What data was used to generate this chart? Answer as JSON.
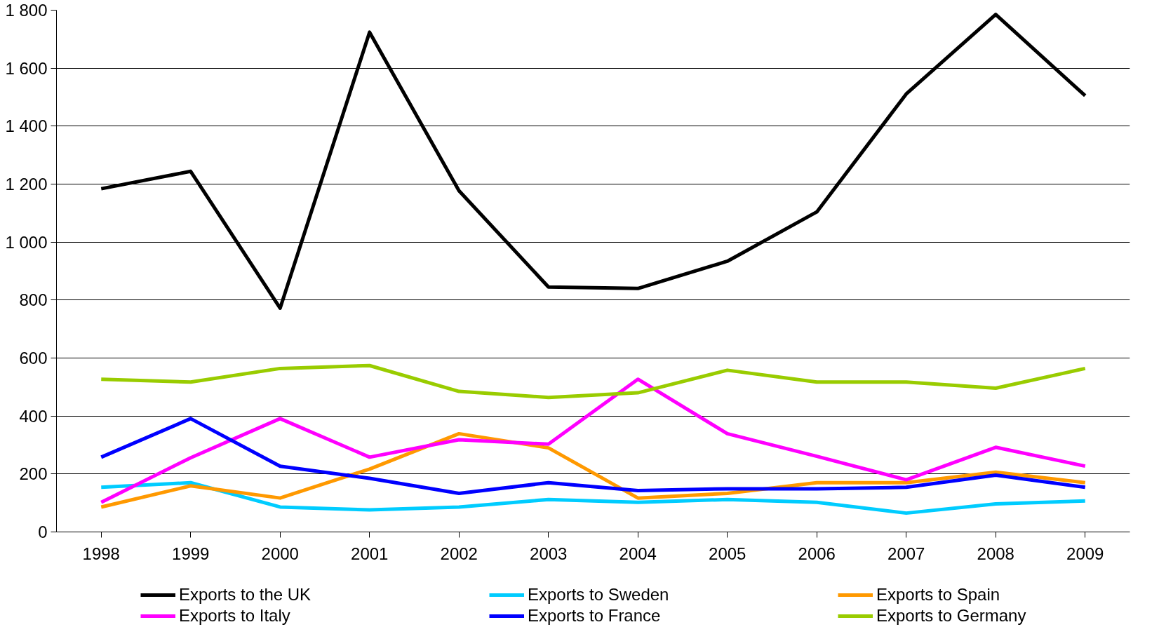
{
  "chart_data": {
    "type": "line",
    "categories": [
      "1998",
      "1999",
      "2000",
      "2001",
      "2002",
      "2003",
      "2004",
      "2005",
      "2006",
      "2007",
      "2008",
      "2009"
    ],
    "series": [
      {
        "name": "Exports to the UK",
        "color": "#000000",
        "values": [
          1184,
          1244,
          772,
          1724,
          1177,
          845,
          840,
          934,
          1104,
          1511,
          1785,
          1505
        ]
      },
      {
        "name": "Exports to Sweden",
        "color": "#00ccff",
        "values": [
          154,
          170,
          86,
          76,
          86,
          112,
          102,
          112,
          102,
          65,
          97,
          107
        ]
      },
      {
        "name": "Exports to Spain",
        "color": "#ff9900",
        "values": [
          86,
          159,
          117,
          217,
          339,
          290,
          117,
          133,
          170,
          170,
          206,
          170
        ]
      },
      {
        "name": "Exports to Italy",
        "color": "#ff00ff",
        "values": [
          102,
          256,
          391,
          258,
          318,
          303,
          527,
          339,
          261,
          180,
          292,
          227
        ]
      },
      {
        "name": "Exports to France",
        "color": "#0000ff",
        "values": [
          258,
          391,
          227,
          185,
          133,
          170,
          143,
          149,
          149,
          154,
          196,
          154
        ]
      },
      {
        "name": "Exports to Germany",
        "color": "#99cc00",
        "values": [
          527,
          517,
          564,
          574,
          485,
          464,
          480,
          558,
          517,
          517,
          496,
          564
        ]
      }
    ],
    "ylim": [
      0,
      1800
    ],
    "yticks": [
      0,
      200,
      400,
      600,
      800,
      {
        "value": 1000,
        "label": "1 000"
      },
      {
        "value": 1200,
        "label": "1 200"
      },
      {
        "value": 1400,
        "label": "1 400"
      },
      {
        "value": 1600,
        "label": "1 600"
      },
      {
        "value": 1800,
        "label": "1 800"
      }
    ],
    "grid": "y",
    "legend": "bottom",
    "marker": "none",
    "line_style": "solid"
  }
}
